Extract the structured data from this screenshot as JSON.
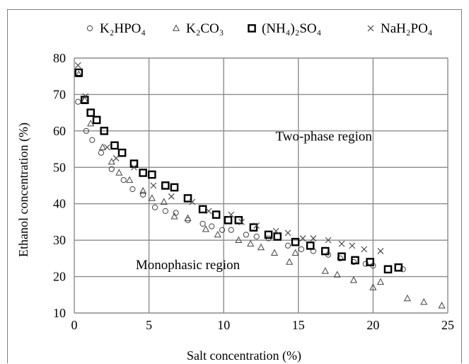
{
  "chart_data": {
    "type": "scatter",
    "xlabel": "Salt concentration (%)",
    "ylabel": "Ethanol concentration (%)",
    "xlim": [
      0,
      25
    ],
    "ylim": [
      10,
      80
    ],
    "x_ticks": [
      "0",
      "5",
      "10",
      "15",
      "20",
      "25"
    ],
    "y_ticks": [
      "10",
      "20",
      "30",
      "40",
      "50",
      "60",
      "70",
      "80"
    ],
    "grid": true,
    "legend_position": "top",
    "annotations": [
      {
        "text": "Two-phase region",
        "x": 16.7,
        "y": 58.5
      },
      {
        "text": "Monophasic region",
        "x": 7.6,
        "y": 23.2
      }
    ],
    "series": [
      {
        "name": "K₂HPO₄",
        "marker": "circle",
        "color": "#404040",
        "points": [
          [
            0.25,
            68.0
          ],
          [
            0.8,
            60.0
          ],
          [
            1.2,
            57.5
          ],
          [
            1.8,
            54.0
          ],
          [
            2.5,
            49.5
          ],
          [
            3.3,
            46.5
          ],
          [
            3.9,
            44.0
          ],
          [
            4.6,
            42.5
          ],
          [
            5.4,
            39.0
          ],
          [
            6.1,
            38.0
          ],
          [
            6.8,
            37.5
          ],
          [
            7.6,
            35.5
          ],
          [
            8.6,
            34.5
          ],
          [
            9.2,
            33.8
          ],
          [
            9.9,
            32.8
          ],
          [
            10.5,
            32.8
          ],
          [
            11.5,
            31.5
          ],
          [
            12.2,
            31.0
          ],
          [
            13.0,
            30.5
          ],
          [
            14.3,
            28.5
          ],
          [
            15.2,
            27.5
          ],
          [
            16.0,
            27.0
          ],
          [
            17.0,
            26.0
          ],
          [
            17.8,
            25.0
          ],
          [
            18.7,
            24.0
          ],
          [
            19.5,
            23.5
          ],
          [
            20.0,
            23.0
          ],
          [
            22.0,
            22.0
          ]
        ]
      },
      {
        "name": "K₂CO₃",
        "marker": "triangle",
        "color": "#404040",
        "points": [
          [
            0.3,
            75.5
          ],
          [
            0.7,
            68.5
          ],
          [
            1.1,
            62.0
          ],
          [
            1.9,
            55.5
          ],
          [
            2.5,
            51.5
          ],
          [
            3.0,
            48.5
          ],
          [
            3.7,
            46.5
          ],
          [
            4.6,
            43.5
          ],
          [
            5.2,
            41.5
          ],
          [
            6.0,
            40.5
          ],
          [
            6.7,
            36.5
          ],
          [
            7.6,
            36.0
          ],
          [
            8.8,
            33.0
          ],
          [
            9.6,
            31.5
          ],
          [
            11.0,
            30.0
          ],
          [
            11.8,
            29.0
          ],
          [
            12.5,
            28.0
          ],
          [
            13.4,
            26.5
          ],
          [
            14.4,
            24.0
          ],
          [
            14.8,
            26.5
          ],
          [
            16.8,
            21.5
          ],
          [
            17.6,
            20.5
          ],
          [
            18.7,
            19.0
          ],
          [
            20.0,
            17.0
          ],
          [
            20.5,
            18.5
          ],
          [
            22.3,
            14.0
          ],
          [
            23.4,
            13.0
          ],
          [
            24.6,
            12.0
          ]
        ]
      },
      {
        "name": "(NH₄)₂SO₄",
        "marker": "square",
        "color": "#000000",
        "points": [
          [
            0.3,
            76.0
          ],
          [
            0.7,
            68.5
          ],
          [
            1.1,
            65.0
          ],
          [
            1.5,
            63.0
          ],
          [
            2.0,
            60.0
          ],
          [
            2.7,
            56.0
          ],
          [
            3.2,
            54.0
          ],
          [
            4.0,
            51.0
          ],
          [
            4.6,
            48.5
          ],
          [
            5.2,
            48.0
          ],
          [
            6.1,
            45.0
          ],
          [
            6.7,
            44.5
          ],
          [
            7.6,
            41.5
          ],
          [
            8.6,
            38.5
          ],
          [
            9.5,
            37.0
          ],
          [
            10.3,
            35.5
          ],
          [
            11.0,
            35.5
          ],
          [
            12.0,
            33.5
          ],
          [
            13.0,
            31.5
          ],
          [
            13.6,
            31.0
          ],
          [
            14.8,
            29.5
          ],
          [
            15.8,
            28.5
          ],
          [
            16.8,
            27.0
          ],
          [
            17.9,
            25.5
          ],
          [
            18.8,
            24.5
          ],
          [
            19.8,
            24.0
          ],
          [
            21.0,
            22.0
          ],
          [
            21.7,
            22.5
          ]
        ]
      },
      {
        "name": "NaH₂PO₄",
        "marker": "x",
        "color": "#404040",
        "points": [
          [
            0.25,
            78.0
          ],
          [
            0.75,
            69.5
          ],
          [
            2.2,
            55.5
          ],
          [
            2.8,
            52.5
          ],
          [
            4.0,
            50.0
          ],
          [
            5.3,
            45.0
          ],
          [
            6.5,
            42.0
          ],
          [
            7.9,
            40.5
          ],
          [
            9.0,
            38.0
          ],
          [
            10.5,
            37.0
          ],
          [
            11.2,
            35.0
          ],
          [
            12.2,
            34.0
          ],
          [
            13.5,
            32.5
          ],
          [
            14.3,
            32.0
          ],
          [
            15.3,
            30.5
          ],
          [
            16.0,
            30.5
          ],
          [
            17.0,
            30.0
          ],
          [
            17.9,
            29.0
          ],
          [
            18.6,
            28.5
          ],
          [
            19.4,
            27.5
          ],
          [
            20.5,
            27.0
          ]
        ]
      }
    ]
  }
}
